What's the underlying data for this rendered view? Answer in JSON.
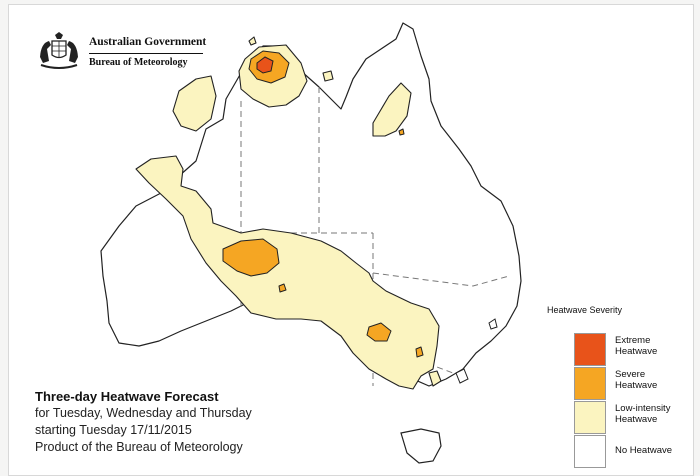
{
  "header": {
    "government": "Australian Government",
    "agency": "Bureau of Meteorology"
  },
  "caption": {
    "title": "Three-day Heatwave Forecast",
    "line1": "for Tuesday, Wednesday and Thursday",
    "line2": "starting Tuesday 17/11/2015",
    "line3": "Product of the Bureau of Meteorology"
  },
  "legend": {
    "title": "Heatwave Severity",
    "items": [
      {
        "label": "Extreme Heatwave",
        "color": "#e8531a"
      },
      {
        "label": "Severe Heatwave",
        "color": "#f5a623"
      },
      {
        "label": "Low-intensity Heatwave",
        "color": "#fbf4c0"
      },
      {
        "label": "No Heatwave",
        "color": "#ffffff"
      }
    ]
  },
  "map": {
    "region": "Australia",
    "colors": {
      "extreme": "#e8531a",
      "severe": "#f5a623",
      "low": "#fbf4c0",
      "land": "#ffffff",
      "outline": "#222222",
      "border": "#777777"
    }
  }
}
